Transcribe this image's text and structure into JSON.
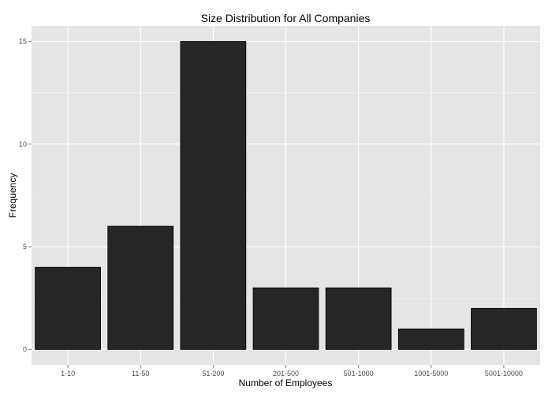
{
  "chart_data": {
    "type": "bar",
    "title": "Size Distribution for All Companies",
    "xlabel": "Number of Employees",
    "ylabel": "Frequency",
    "categories": [
      "1-10",
      "11-50",
      "51-200",
      "201-500",
      "501-1000",
      "1001-5000",
      "5001-10000"
    ],
    "values": [
      4,
      6,
      15,
      3,
      3,
      1,
      2
    ],
    "ylim": [
      -0.75,
      15.75
    ],
    "yticks": [
      0,
      5,
      10,
      15
    ],
    "grid": true,
    "colors": {
      "panel": "#e5e5e5",
      "grid_major": "#ffffff",
      "grid_minor": "#f2f2f2",
      "bar_fill": "#262626",
      "bar_outline": "#000000"
    }
  }
}
